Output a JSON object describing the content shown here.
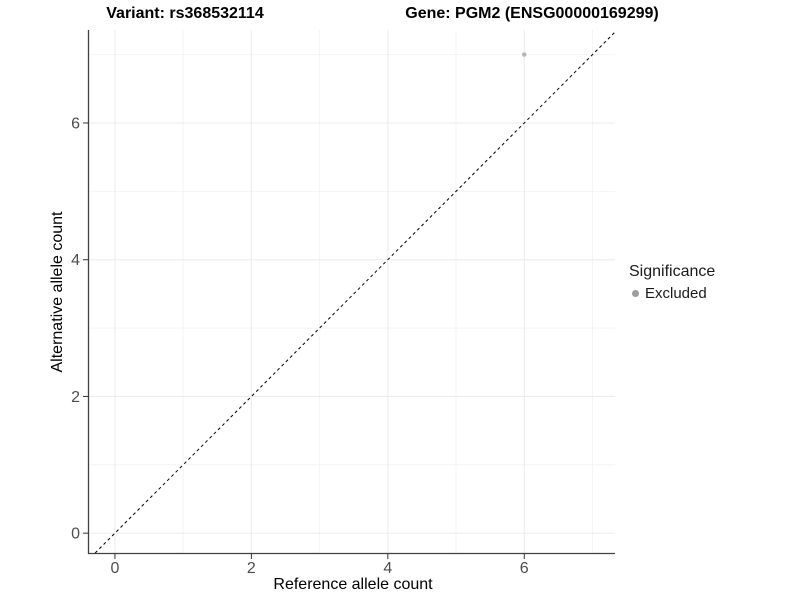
{
  "chart_data": {
    "type": "scatter",
    "titles": {
      "variant": "Variant: rs368532114",
      "gene": "Gene: PGM2 (ENSG00000169299)"
    },
    "xlabel": "Reference allele count",
    "ylabel": "Alternative allele count",
    "xlim": [
      -0.38,
      7.33
    ],
    "ylim": [
      -0.29,
      7.36
    ],
    "x_ticks": [
      0,
      2,
      4,
      6
    ],
    "y_ticks": [
      0,
      2,
      4,
      6
    ],
    "x_minor_ticks": [
      1,
      3,
      5,
      7
    ],
    "y_minor_ticks": [
      1,
      3,
      5,
      7
    ],
    "grid": true,
    "points": [
      {
        "x": 6,
        "y": 7,
        "significance": "Excluded",
        "color": "#b4b4b4"
      }
    ],
    "reference_line": {
      "type": "identity",
      "style": "dashed",
      "color": "#000000"
    },
    "legend": {
      "position": "right",
      "title": "Significance",
      "items": [
        {
          "label": "Excluded",
          "color": "#9e9e9e"
        }
      ]
    },
    "colors": {
      "grid_major": "#ebebeb",
      "grid_minor": "#f4f4f4",
      "axis_line": "#404040",
      "tick_mark": "#333333",
      "tick_text": "#4d4d4d"
    }
  }
}
